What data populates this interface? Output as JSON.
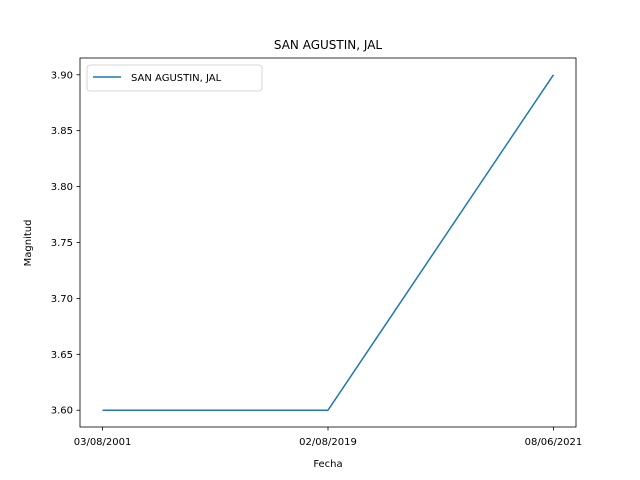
{
  "chart_data": {
    "type": "line",
    "title": "SAN AGUSTIN, JAL",
    "xlabel": "Fecha",
    "ylabel": "Magnitud",
    "categories": [
      "03/08/2001",
      "02/08/2019",
      "08/06/2021"
    ],
    "series": [
      {
        "name": "SAN AGUSTIN, JAL",
        "values": [
          3.6,
          3.6,
          3.9
        ],
        "color": "#1f77b4"
      }
    ],
    "yticks": [
      "3.60",
      "3.65",
      "3.70",
      "3.75",
      "3.80",
      "3.85",
      "3.90"
    ],
    "ylim": [
      3.585,
      3.915
    ],
    "legend": "upper-left",
    "grid": false
  }
}
